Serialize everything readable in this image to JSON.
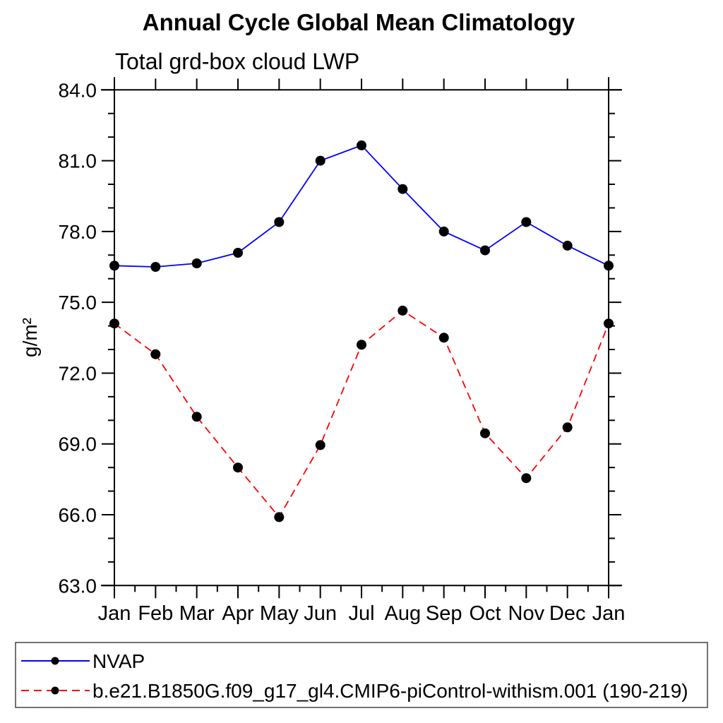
{
  "title": "Annual Cycle Global Mean Climatology",
  "subtitle": "Total grd-box cloud LWP",
  "chart_data": {
    "type": "line",
    "x_categories": [
      "Jan",
      "Feb",
      "Mar",
      "Apr",
      "May",
      "Jun",
      "Jul",
      "Aug",
      "Sep",
      "Oct",
      "Nov",
      "Dec",
      "Jan"
    ],
    "ylabel": "g/m²",
    "ylim": [
      63.0,
      84.0
    ],
    "ytick_major_step": 3.0,
    "ytick_minor_step": 1.0,
    "ytick_labels": [
      "63.0",
      "66.0",
      "69.0",
      "72.0",
      "75.0",
      "78.0",
      "81.0",
      "84.0"
    ],
    "grid": false,
    "legend_position": "bottom",
    "frame_color": "#000000",
    "series": [
      {
        "name": "NVAP",
        "color": "#0000ff",
        "line_style": "solid",
        "marker": "filled-circle",
        "marker_color": "#000000",
        "values": [
          76.55,
          76.5,
          76.65,
          77.1,
          78.4,
          81.0,
          81.65,
          79.8,
          78.0,
          77.2,
          78.4,
          77.4,
          76.55
        ]
      },
      {
        "name": "b.e21.B1850G.f09_g17_gl4.CMIP6-piControl-withism.001 (190-219)",
        "color": "#ff0000",
        "line_style": "dashed",
        "marker": "filled-circle",
        "marker_color": "#000000",
        "values": [
          74.1,
          72.8,
          70.15,
          68.0,
          65.9,
          68.95,
          73.2,
          74.65,
          73.5,
          69.45,
          67.55,
          69.7,
          74.1
        ]
      }
    ]
  }
}
